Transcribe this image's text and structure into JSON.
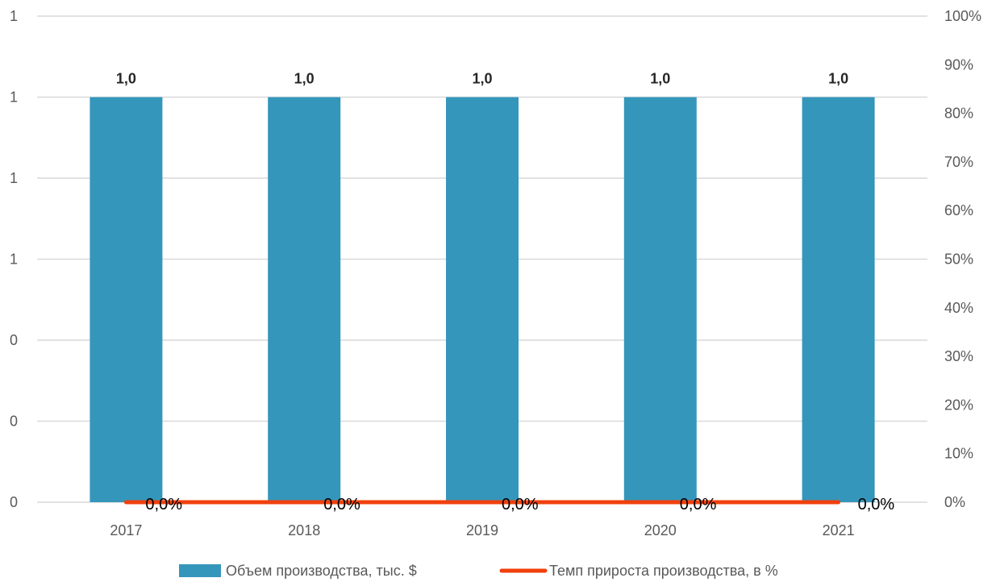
{
  "chart_data": {
    "type": "bar",
    "categories": [
      "2017",
      "2018",
      "2019",
      "2020",
      "2021"
    ],
    "series": [
      {
        "name": "Объем производства, тыс. $",
        "type": "bar",
        "axis": "left",
        "color": "#3596bb",
        "values": [
          1.0,
          1.0,
          1.0,
          1.0,
          1.0
        ],
        "labels": [
          "1,0",
          "1,0",
          "1,0",
          "1,0",
          "1,0"
        ]
      },
      {
        "name": "Темп прироста производства, в %",
        "type": "line",
        "axis": "right",
        "color": "#f0400d",
        "values": [
          0,
          0,
          0,
          0,
          0
        ],
        "labels": [
          "0,0%",
          "0,0%",
          "0,0%",
          "0,0%",
          "0,0%"
        ]
      }
    ],
    "y_left": {
      "range": [
        0,
        1.2
      ],
      "ticks": [
        0,
        0.2,
        0.4,
        0.6,
        0.8,
        1.0,
        1.2
      ],
      "tick_labels": [
        "0",
        "0",
        "0",
        "1",
        "1",
        "1",
        "1"
      ]
    },
    "y_right": {
      "range": [
        0,
        100
      ],
      "ticks": [
        0,
        10,
        20,
        30,
        40,
        50,
        60,
        70,
        80,
        90,
        100
      ],
      "tick_labels": [
        "0%",
        "10%",
        "20%",
        "30%",
        "40%",
        "50%",
        "60%",
        "70%",
        "80%",
        "90%",
        "100%"
      ]
    },
    "title": "",
    "xlabel": "",
    "ylabel": "",
    "grid": true,
    "legend": "bottom"
  }
}
